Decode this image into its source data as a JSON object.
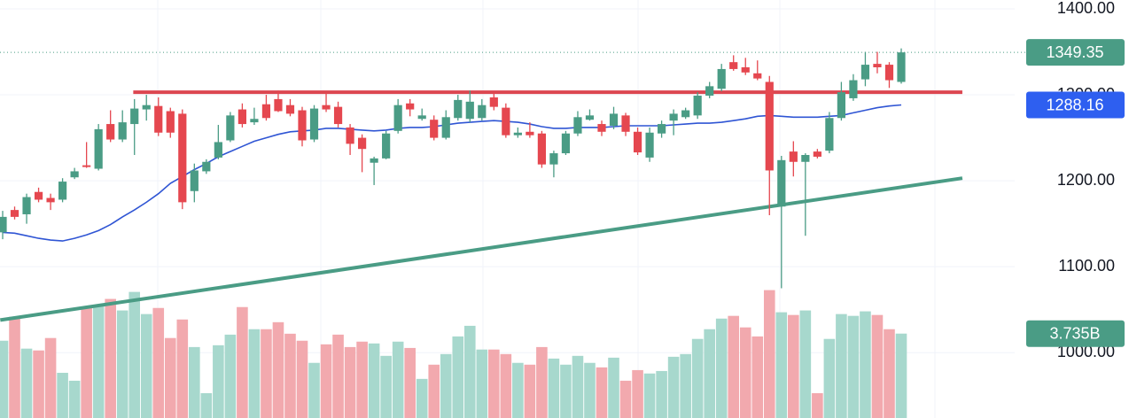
{
  "chart_data": {
    "type": "candlestick",
    "ylim": [
      924,
      1410.3
    ],
    "yticks": [
      {
        "value": 1000,
        "label": "1000.00"
      },
      {
        "value": 1100,
        "label": "1100.00"
      },
      {
        "value": 1200,
        "label": "1200.00"
      },
      {
        "value": 1300,
        "label": "1300.00"
      },
      {
        "value": 1400,
        "label": "1400.00"
      }
    ],
    "grid": true,
    "up_color": "#4a9c85",
    "down_color": "#e5474f",
    "volume_up_color": "#a7d8cd",
    "volume_down_color": "#f2a9ae",
    "volume_lim": [
      0,
      18.5
    ],
    "ohlc": [
      [
        1140,
        1165,
        1132,
        1158
      ],
      [
        1166,
        1170,
        1155,
        1158
      ],
      [
        1161,
        1185,
        1150,
        1181
      ],
      [
        1187,
        1192,
        1175,
        1178
      ],
      [
        1180,
        1185,
        1166,
        1175
      ],
      [
        1178,
        1203,
        1175,
        1199
      ],
      [
        1204,
        1215,
        1202,
        1211
      ],
      [
        1218,
        1245,
        1215,
        1216
      ],
      [
        1214,
        1266,
        1212,
        1260
      ],
      [
        1266,
        1282,
        1245,
        1248
      ],
      [
        1248,
        1282,
        1245,
        1268
      ],
      [
        1266,
        1295,
        1230,
        1284
      ],
      [
        1283,
        1300,
        1270,
        1288
      ],
      [
        1287,
        1297,
        1252,
        1256
      ],
      [
        1281,
        1285,
        1250,
        1256
      ],
      [
        1278,
        1283,
        1167,
        1175
      ],
      [
        1188,
        1220,
        1175,
        1212
      ],
      [
        1211,
        1225,
        1208,
        1222
      ],
      [
        1227,
        1265,
        1225,
        1245
      ],
      [
        1247,
        1280,
        1245,
        1276
      ],
      [
        1283,
        1290,
        1262,
        1266
      ],
      [
        1268,
        1285,
        1265,
        1272
      ],
      [
        1289,
        1300,
        1270,
        1273
      ],
      [
        1295,
        1305,
        1280,
        1281
      ],
      [
        1288,
        1295,
        1275,
        1278
      ],
      [
        1282,
        1286,
        1240,
        1247
      ],
      [
        1248,
        1288,
        1245,
        1284
      ],
      [
        1288,
        1302,
        1280,
        1283
      ],
      [
        1286,
        1292,
        1262,
        1266
      ],
      [
        1262,
        1266,
        1230,
        1243
      ],
      [
        1250,
        1254,
        1210,
        1237
      ],
      [
        1221,
        1228,
        1195,
        1226
      ],
      [
        1226,
        1258,
        1225,
        1255
      ],
      [
        1258,
        1295,
        1255,
        1288
      ],
      [
        1290,
        1295,
        1275,
        1283
      ],
      [
        1272,
        1284,
        1270,
        1276
      ],
      [
        1271,
        1276,
        1247,
        1250
      ],
      [
        1250,
        1282,
        1248,
        1274
      ],
      [
        1273,
        1300,
        1270,
        1294
      ],
      [
        1272,
        1305,
        1268,
        1292
      ],
      [
        1273,
        1295,
        1270,
        1288
      ],
      [
        1297,
        1302,
        1282,
        1286
      ],
      [
        1285,
        1290,
        1250,
        1253
      ],
      [
        1253,
        1262,
        1250,
        1256
      ],
      [
        1257,
        1268,
        1250,
        1253
      ],
      [
        1255,
        1258,
        1215,
        1219
      ],
      [
        1219,
        1235,
        1204,
        1232
      ],
      [
        1232,
        1258,
        1230,
        1255
      ],
      [
        1255,
        1281,
        1252,
        1274
      ],
      [
        1271,
        1283,
        1270,
        1276
      ],
      [
        1266,
        1270,
        1252,
        1257
      ],
      [
        1264,
        1286,
        1260,
        1278
      ],
      [
        1276,
        1279,
        1252,
        1257
      ],
      [
        1257,
        1262,
        1230,
        1233
      ],
      [
        1227,
        1262,
        1222,
        1256
      ],
      [
        1255,
        1270,
        1250,
        1266
      ],
      [
        1270,
        1283,
        1253,
        1278
      ],
      [
        1274,
        1285,
        1272,
        1282
      ],
      [
        1276,
        1303,
        1272,
        1299
      ],
      [
        1299,
        1315,
        1296,
        1310
      ],
      [
        1307,
        1336,
        1304,
        1330
      ],
      [
        1338,
        1346,
        1328,
        1330
      ],
      [
        1332,
        1343,
        1323,
        1326
      ],
      [
        1325,
        1340,
        1317,
        1319
      ],
      [
        1315,
        1322,
        1160,
        1212
      ],
      [
        1170,
        1229,
        1075,
        1224
      ],
      [
        1234,
        1246,
        1205,
        1222
      ],
      [
        1222,
        1232,
        1136,
        1230
      ],
      [
        1234,
        1237,
        1226,
        1228
      ],
      [
        1235,
        1280,
        1232,
        1273
      ],
      [
        1273,
        1315,
        1270,
        1303
      ],
      [
        1296,
        1324,
        1293,
        1317
      ],
      [
        1318,
        1350,
        1310,
        1335
      ],
      [
        1336,
        1350,
        1325,
        1332
      ],
      [
        1335,
        1338,
        1308,
        1317
      ],
      [
        1315,
        1354,
        1313,
        1349.35
      ]
    ],
    "volume": [
      3.42,
      4.48,
      3.07,
      2.99,
      3.54,
      2.0,
      1.65,
      4.87,
      4.99,
      5.27,
      4.76,
      5.58,
      4.6,
      4.87,
      3.54,
      4.36,
      3.14,
      1.1,
      3.22,
      3.69,
      4.91,
      3.93,
      3.93,
      4.24,
      3.73,
      3.42,
      2.44,
      3.26,
      3.69,
      3.14,
      3.38,
      3.3,
      2.75,
      3.38,
      3.1,
      1.73,
      2.36,
      2.83,
      3.61,
      4.08,
      3.03,
      3.03,
      2.83,
      2.44,
      2.36,
      3.14,
      2.63,
      2.36,
      2.75,
      2.44,
      2.24,
      2.67,
      1.65,
      2.12,
      1.97,
      2.08,
      2.71,
      2.83,
      3.5,
      3.93,
      4.4,
      4.52,
      4.01,
      3.61,
      5.66,
      4.68,
      4.56,
      4.76,
      1.1,
      3.5,
      4.6,
      4.52,
      4.72,
      4.56,
      3.93,
      3.735
    ],
    "volume_label": "3.735B",
    "moving_average": {
      "color": "#2f55d4",
      "values": [
        1140,
        1139,
        1136,
        1133,
        1131,
        1130,
        1133,
        1137,
        1142,
        1149,
        1158,
        1166,
        1175,
        1185,
        1197,
        1205,
        1213,
        1220,
        1228,
        1234,
        1240,
        1246,
        1250,
        1254,
        1257,
        1258,
        1259,
        1261,
        1261,
        1260,
        1259,
        1258,
        1259,
        1261,
        1262,
        1262,
        1263,
        1265,
        1267,
        1268,
        1269,
        1270,
        1269,
        1268,
        1266,
        1263,
        1261,
        1261,
        1262,
        1262,
        1262,
        1263,
        1264,
        1264,
        1264,
        1264,
        1265,
        1266,
        1267,
        1267,
        1268,
        1270,
        1272,
        1275,
        1276,
        1275,
        1274,
        1274,
        1274,
        1275,
        1276,
        1279,
        1282,
        1285,
        1287,
        1288.16
      ]
    },
    "lines": [
      {
        "color": "#dc4650",
        "from": [
          10.9,
          1303
        ],
        "to": [
          80.1,
          1303
        ]
      },
      {
        "color": "#4a9c85",
        "from": [
          -0.2,
          1038
        ],
        "to": [
          80.1,
          1203
        ]
      }
    ]
  }
}
